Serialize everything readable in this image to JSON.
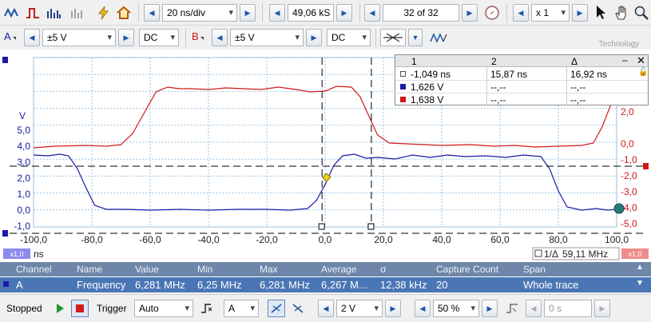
{
  "toolbar1": {
    "timebase": "20 ns/div",
    "samples": "49,06 kS",
    "capture": "32 of 32",
    "zoom": "x 1",
    "icons": [
      "channels-icon",
      "trigger-icon",
      "spectrum-icon",
      "persistence-icon",
      "measure-icon",
      "home-icon"
    ]
  },
  "toolbar2": {
    "chA_label": "A",
    "chA_range": "±5 V",
    "chA_coupling": "DC",
    "chB_label": "B",
    "chB_range": "±5 V",
    "chB_coupling": "DC",
    "logo_text": "Technology"
  },
  "plot": {
    "left_unit": "V",
    "left_ticks": [
      "5,0",
      "4,0",
      "3,0",
      "2,0",
      "1,0",
      "0,0",
      "-1,0"
    ],
    "right_ticks": [
      "2,0",
      "0,0",
      "-1,0",
      "-2,0",
      "-3,0",
      "-4,0",
      "-5,0"
    ],
    "x_ticks": [
      "-100,0",
      "-80,0",
      "-60,0",
      "-40,0",
      "-20,0",
      "0,0",
      "20,0",
      "40,0",
      "60,0",
      "80,0",
      "100,0"
    ],
    "x_unit": "ns",
    "x_scale_left": "x1,0",
    "x_scale_right": "x1,0",
    "freq_label": "1/Δ",
    "freq_value": "59,11 MHz"
  },
  "ruler_overlay": {
    "header": [
      "1",
      "2",
      "Δ"
    ],
    "rows": [
      {
        "c1": "-1,049 ns",
        "c2": "15,87 ns",
        "c3": "16,92 ns"
      },
      {
        "c1": "1,626 V",
        "c2": "--,--",
        "c3": "--,--"
      },
      {
        "c1": "1,638 V",
        "c2": "--,--",
        "c3": "--,--"
      }
    ]
  },
  "measurements": {
    "headers": [
      "Channel",
      "Name",
      "Value",
      "Min",
      "Max",
      "Average",
      "σ",
      "Capture Count",
      "Span"
    ],
    "row": [
      "A",
      "Frequency",
      "6,281 MHz",
      "6,25 MHz",
      "6,281 MHz",
      "6,267 M...",
      "12,38 kHz",
      "20",
      "Whole trace"
    ]
  },
  "statusbar": {
    "state": "Stopped",
    "trigger_label": "Trigger",
    "trigger_mode": "Auto",
    "trigger_source": "A",
    "trigger_level": "2 V",
    "pretrigger": "50 %",
    "delay": "0 s"
  },
  "colors": {
    "chA": "#1a1aa8",
    "chB": "#d01818",
    "accent": "#1b56a6"
  }
}
